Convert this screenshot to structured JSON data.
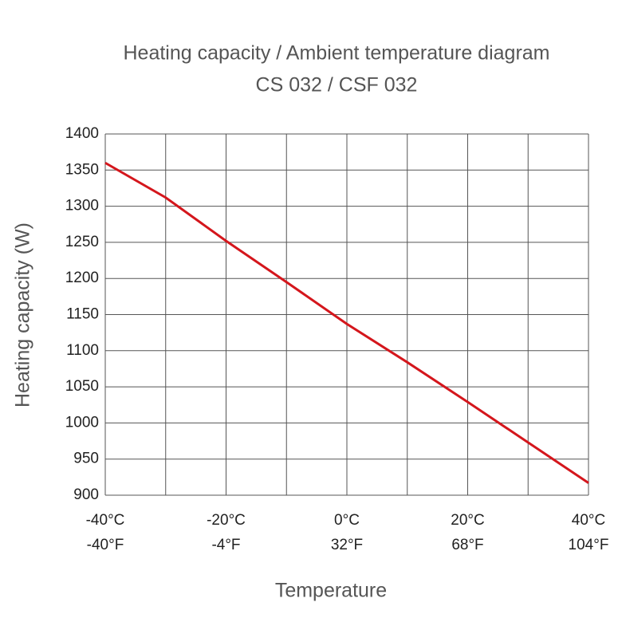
{
  "chart_data": {
    "type": "line",
    "title": "Heating capacity / Ambient temperature diagram",
    "subtitle": "CS 032 / CSF 032",
    "x_label": "Temperature",
    "y_label": "Heating capacity (W)",
    "x": [
      -40,
      -30,
      -20,
      -10,
      0,
      10,
      20,
      30,
      40
    ],
    "values": [
      1360,
      1312,
      1252,
      1195,
      1137,
      1084,
      1029,
      973,
      917
    ],
    "color": "#d4161c",
    "xlim": [
      -40,
      40
    ],
    "xticks": [
      {
        "value": -40,
        "label": "-40°C"
      },
      {
        "value": -30,
        "label": null
      },
      {
        "value": -20,
        "label": "-20°C"
      },
      {
        "value": -10,
        "label": null
      },
      {
        "value": 0,
        "label": "0°C"
      },
      {
        "value": 10,
        "label": null
      },
      {
        "value": 20,
        "label": "20°C"
      },
      {
        "value": 30,
        "label": null
      },
      {
        "value": 40,
        "label": "40°C"
      }
    ],
    "x2lim": [
      -40,
      104
    ],
    "x2ticks": [
      {
        "value": -40,
        "label": "-40°F"
      },
      {
        "value": -4,
        "label": "-4°F"
      },
      {
        "value": 32,
        "label": "32°F"
      },
      {
        "value": 68,
        "label": "68°F"
      },
      {
        "value": 104,
        "label": "104°F"
      }
    ],
    "ylim": [
      900,
      1400
    ],
    "yticks": [
      900,
      950,
      1000,
      1050,
      1100,
      1150,
      1200,
      1250,
      1300,
      1350,
      1400
    ],
    "grid": true
  }
}
